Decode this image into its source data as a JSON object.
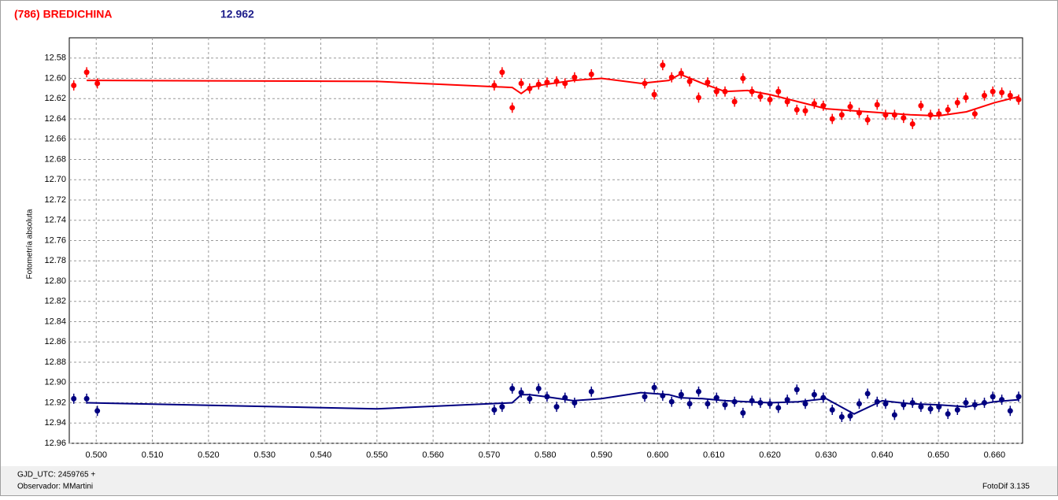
{
  "chart_data": {
    "type": "scatter",
    "title": "(786) BREDICHINA",
    "annotation": "12.962",
    "ylabel": "Fotometría absoluta",
    "xlim": [
      0.4952,
      0.665
    ],
    "ylim": [
      12.56,
      12.96
    ],
    "y_reversed": true,
    "grid": true,
    "xticks": [
      {
        "value": 0.5,
        "label": "0.500"
      },
      {
        "value": 0.51,
        "label": "0.510"
      },
      {
        "value": 0.52,
        "label": "0.520"
      },
      {
        "value": 0.53,
        "label": "0.530"
      },
      {
        "value": 0.54,
        "label": "0.540"
      },
      {
        "value": 0.55,
        "label": "0.550"
      },
      {
        "value": 0.56,
        "label": "0.560"
      },
      {
        "value": 0.57,
        "label": "0.570"
      },
      {
        "value": 0.58,
        "label": "0.580"
      },
      {
        "value": 0.59,
        "label": "0.590"
      },
      {
        "value": 0.6,
        "label": "0.600"
      },
      {
        "value": 0.61,
        "label": "0.610"
      },
      {
        "value": 0.62,
        "label": "0.620"
      },
      {
        "value": 0.63,
        "label": "0.630"
      },
      {
        "value": 0.64,
        "label": "0.640"
      },
      {
        "value": 0.65,
        "label": "0.650"
      },
      {
        "value": 0.66,
        "label": "0.660"
      }
    ],
    "yticks": [
      12.58,
      {
        "value": 12.6,
        "label": "12.60"
      },
      12.62,
      12.64,
      12.66,
      12.68,
      {
        "value": 12.7,
        "label": "12.70"
      },
      12.72,
      12.74,
      12.76,
      12.78,
      {
        "value": 12.8,
        "label": "12.80"
      },
      12.82,
      12.84,
      12.86,
      12.88,
      {
        "value": 12.9,
        "label": "12.90"
      },
      12.92,
      12.94,
      12.96
    ],
    "x": [
      0.496,
      0.4983,
      0.5002,
      0.5709,
      0.5723,
      0.5741,
      0.5757,
      0.5772,
      0.5788,
      0.5803,
      0.582,
      0.5835,
      0.5852,
      0.5882,
      0.5977,
      0.5994,
      0.6009,
      0.6025,
      0.6042,
      0.6057,
      0.6073,
      0.6089,
      0.6105,
      0.612,
      0.6137,
      0.6152,
      0.6168,
      0.6183,
      0.62,
      0.6215,
      0.6231,
      0.6248,
      0.6263,
      0.6279,
      0.6295,
      0.6311,
      0.6328,
      0.6343,
      0.6359,
      0.6374,
      0.6391,
      0.6406,
      0.6422,
      0.6438,
      0.6454,
      0.6469,
      0.6486,
      0.6501,
      0.6517,
      0.6534,
      0.6549,
      0.6565,
      0.6582,
      0.6597,
      0.6613,
      0.6628,
      0.6643
    ],
    "fit_x": [
      0.4983,
      0.55,
      0.5741,
      0.5757,
      0.5772,
      0.58,
      0.585,
      0.59,
      0.597,
      0.602,
      0.604,
      0.608,
      0.612,
      0.616,
      0.62,
      0.625,
      0.63,
      0.635,
      0.64,
      0.645,
      0.65,
      0.655,
      0.66,
      0.6643
    ],
    "series": [
      {
        "color": "#ff0000",
        "error": 0.005,
        "values": [
          12.607,
          12.594,
          12.605,
          12.607,
          12.594,
          12.629,
          12.605,
          12.61,
          12.606,
          12.604,
          12.603,
          12.605,
          12.599,
          12.596,
          12.605,
          12.616,
          12.587,
          12.599,
          12.595,
          12.603,
          12.619,
          12.604,
          12.613,
          12.613,
          12.623,
          12.6,
          12.613,
          12.618,
          12.621,
          12.613,
          12.623,
          12.631,
          12.632,
          12.625,
          12.627,
          12.64,
          12.636,
          12.628,
          12.634,
          12.641,
          12.626,
          12.636,
          12.636,
          12.639,
          12.645,
          12.627,
          12.636,
          12.635,
          12.631,
          12.624,
          12.619,
          12.635,
          12.617,
          12.613,
          12.614,
          12.617,
          12.621
        ],
        "fit_values": [
          12.602,
          12.603,
          12.609,
          12.615,
          12.609,
          12.606,
          12.602,
          12.6,
          12.605,
          12.602,
          12.596,
          12.605,
          12.613,
          12.612,
          12.616,
          12.623,
          12.63,
          12.632,
          12.634,
          12.636,
          12.637,
          12.633,
          12.624,
          12.618
        ]
      },
      {
        "color": "#000080",
        "error": 0.005,
        "values": [
          12.916,
          12.916,
          12.928,
          12.927,
          12.924,
          12.906,
          12.91,
          12.916,
          12.906,
          12.914,
          12.924,
          12.915,
          12.92,
          12.909,
          12.914,
          12.905,
          12.913,
          12.919,
          12.912,
          12.921,
          12.909,
          12.921,
          12.915,
          12.922,
          12.919,
          12.93,
          12.918,
          12.92,
          12.921,
          12.925,
          12.917,
          12.907,
          12.921,
          12.912,
          12.915,
          12.927,
          12.934,
          12.933,
          12.921,
          12.911,
          12.919,
          12.921,
          12.932,
          12.922,
          12.92,
          12.924,
          12.926,
          12.924,
          12.931,
          12.927,
          12.92,
          12.922,
          12.92,
          12.914,
          12.917,
          12.928,
          12.914
        ],
        "fit_values": [
          12.92,
          12.926,
          12.92,
          12.912,
          12.912,
          12.914,
          12.918,
          12.916,
          12.91,
          12.912,
          12.915,
          12.916,
          12.918,
          12.919,
          12.92,
          12.919,
          12.916,
          12.931,
          12.918,
          12.921,
          12.922,
          12.924,
          12.919,
          12.917
        ]
      }
    ],
    "footer": {
      "gjd": "GJD_UTC: 2459765 +",
      "observer": "Observador: MMartini",
      "software": "FotoDif 3.135"
    }
  }
}
